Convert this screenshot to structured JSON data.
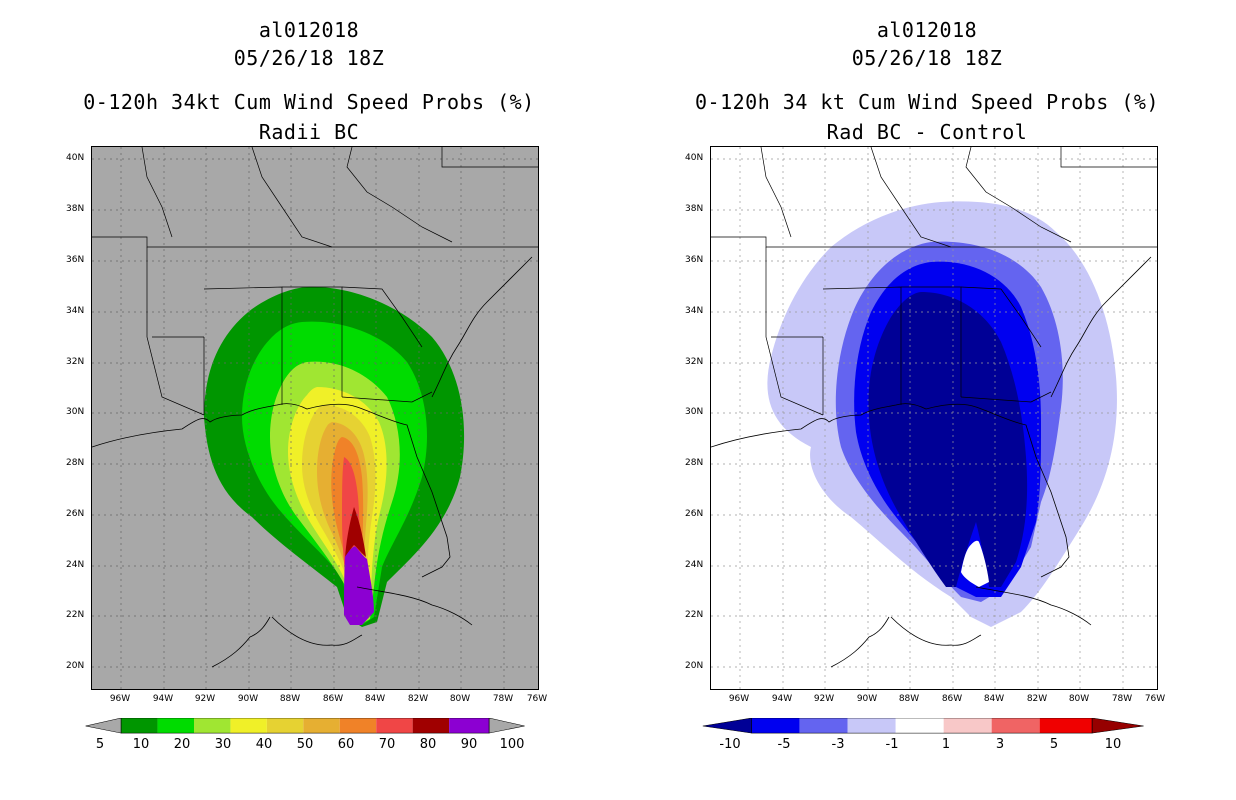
{
  "colors": {
    "land_bg": "#a8a8a8",
    "white_bg": "#ffffff",
    "prob": [
      "#009600",
      "#00dc00",
      "#a0e632",
      "#f0f028",
      "#e6d232",
      "#e6af32",
      "#f08228",
      "#f04646",
      "#a00000",
      "#8c00d2"
    ],
    "diff": [
      "#000096",
      "#0000f0",
      "#6464f0",
      "#c8c8f8",
      "#ffffff",
      "#f8c8c8",
      "#f06464",
      "#f00000",
      "#960000"
    ]
  },
  "left": {
    "storm_id": "al012018",
    "datetime": "05/26/18 18Z",
    "title": "0-120h 34kt Cum Wind Speed Probs (%)",
    "subtitle": "Radii BC",
    "colorbar_labels": [
      "5",
      "10",
      "20",
      "30",
      "40",
      "50",
      "60",
      "70",
      "80",
      "90",
      "100"
    ]
  },
  "right": {
    "storm_id": "al012018",
    "datetime": "05/26/18 18Z",
    "title": "0-120h 34 kt Cum Wind Speed Probs (%)",
    "subtitle": "Rad BC - Control",
    "colorbar_labels": [
      "-10",
      "-5",
      "-3",
      "-1",
      "1",
      "3",
      "5",
      "10"
    ]
  },
  "lat_labels": [
    "40N",
    "38N",
    "36N",
    "34N",
    "32N",
    "30N",
    "28N",
    "26N",
    "24N",
    "22N",
    "20N"
  ],
  "lon_labels": [
    "96W",
    "94W",
    "92W",
    "90W",
    "88W",
    "86W",
    "84W",
    "82W",
    "80W",
    "78W",
    "76W"
  ]
}
